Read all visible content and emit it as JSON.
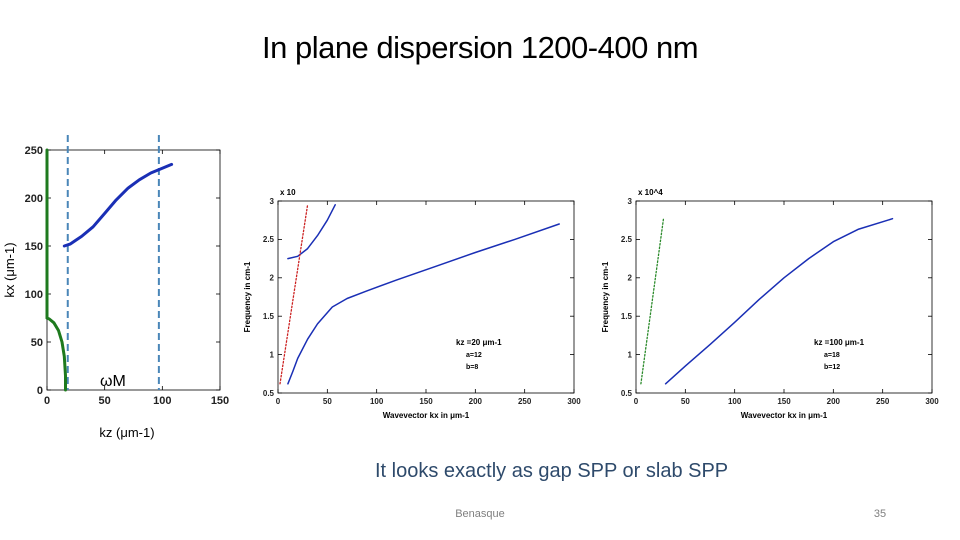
{
  "slide": {
    "title": "In plane dispersion 1200-400 nm",
    "caption": "It looks exactly as gap SPP or slab SPP",
    "footer_center": "Benasque",
    "page_number": "35"
  },
  "chart_data": [
    {
      "type": "line",
      "ylabel": "kx (μm-1)",
      "xlabel": "kz (μm-1)",
      "xlim": [
        0,
        150
      ],
      "ylim": [
        0,
        250
      ],
      "xticks": [
        "0",
        "50",
        "100",
        "150"
      ],
      "yticks": [
        "0",
        "50",
        "100",
        "150",
        "200",
        "250"
      ],
      "annotation": "ωM",
      "series": [
        {
          "color": "#1a2fb5",
          "x": [
            15,
            20,
            25,
            30,
            40,
            50,
            60,
            70,
            80,
            90,
            100,
            108
          ],
          "y": [
            150,
            152,
            156,
            160,
            170,
            184,
            198,
            210,
            219,
            226,
            231,
            235
          ]
        },
        {
          "color": "#1e7a1e",
          "x": [
            0,
            0,
            0,
            2,
            6,
            10,
            13,
            15,
            16,
            16
          ],
          "y": [
            250,
            200,
            75,
            74,
            70,
            62,
            50,
            35,
            15,
            0
          ]
        },
        {
          "color": "#1e7a1e",
          "x": [
            0,
            0
          ],
          "y": [
            150,
            75
          ]
        }
      ],
      "dashed_verticals": [
        {
          "x": 18,
          "color": "#4a86b8"
        },
        {
          "x": 97,
          "color": "#4a86b8"
        }
      ]
    },
    {
      "type": "line",
      "xlabel": "Wavevector kx in μm-1",
      "ylabel": "Frequency in cm-1",
      "multiplier": "x 10",
      "xlim": [
        0,
        300
      ],
      "ylim": [
        0.5,
        3
      ],
      "xticks": [
        "0",
        "50",
        "100",
        "150",
        "200",
        "250",
        "300"
      ],
      "yticks": [
        "0.5",
        "1",
        "1.5",
        "2",
        "2.5",
        "3"
      ],
      "annotation_lines": [
        "kz =20 μm-1",
        "a=12",
        "b=8"
      ],
      "series": [
        {
          "color": "#1a2fb5",
          "x": [
            10,
            15,
            20,
            30,
            40,
            55,
            70,
            90,
            120,
            160,
            200,
            240,
            285
          ],
          "y": [
            0.62,
            0.78,
            0.95,
            1.2,
            1.4,
            1.62,
            1.73,
            1.83,
            1.97,
            2.15,
            2.33,
            2.5,
            2.7
          ]
        },
        {
          "color": "#1a2fb5",
          "x": [
            10,
            20,
            30,
            40,
            50,
            58
          ],
          "y": [
            2.25,
            2.28,
            2.38,
            2.55,
            2.75,
            2.95
          ]
        },
        {
          "color": "#cc2222",
          "dotted": true,
          "x": [
            2,
            30
          ],
          "y": [
            0.62,
            2.95
          ]
        }
      ]
    },
    {
      "type": "line",
      "xlabel": "Wavevector kx in μm-1",
      "ylabel": "Frequency in cm-1",
      "multiplier": "x 10^4",
      "xlim": [
        0,
        300
      ],
      "ylim": [
        0.5,
        3
      ],
      "xticks": [
        "0",
        "50",
        "100",
        "150",
        "200",
        "250",
        "300"
      ],
      "yticks": [
        "0.5",
        "1",
        "1.5",
        "2",
        "2.5",
        "3"
      ],
      "annotation_lines": [
        "kz =100 μm-1",
        "a=18",
        "b=12"
      ],
      "series": [
        {
          "color": "#1a2fb5",
          "x": [
            30,
            50,
            75,
            100,
            125,
            150,
            175,
            200,
            225,
            260
          ],
          "y": [
            0.62,
            0.85,
            1.13,
            1.42,
            1.72,
            2.0,
            2.25,
            2.47,
            2.63,
            2.77
          ]
        },
        {
          "color": "#2a8a2a",
          "dotted": true,
          "x": [
            5,
            28
          ],
          "y": [
            0.62,
            2.78
          ]
        }
      ]
    }
  ]
}
